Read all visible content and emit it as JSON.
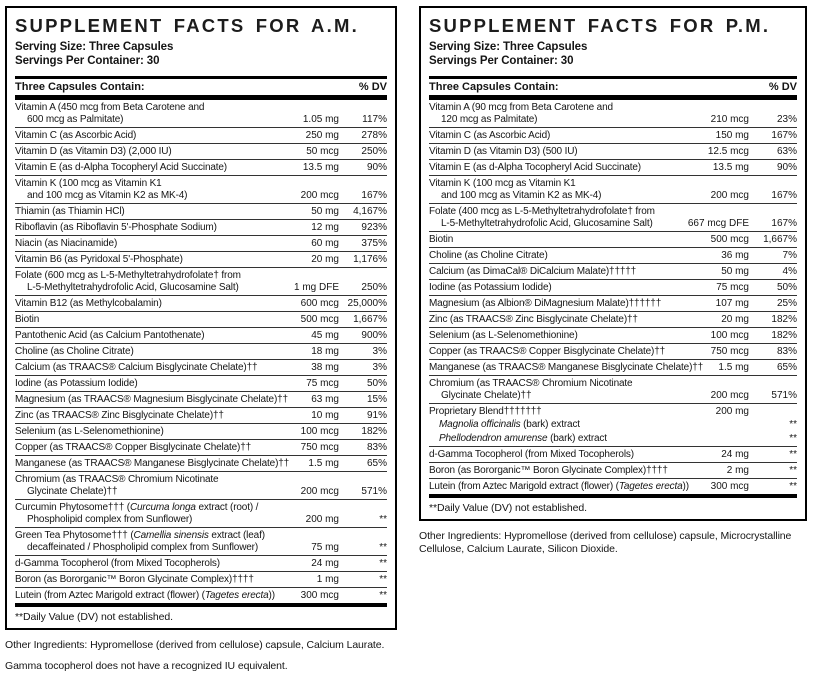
{
  "page": {
    "background": "#ffffff",
    "text_color": "#151515",
    "rule_color": "#000000"
  },
  "panels": [
    {
      "id": "am",
      "title": "SUPPLEMENT FACTS FOR A.M.",
      "serving_size": "Serving Size: Three Capsules",
      "servings_per_container": "Servings Per Container: 30",
      "head_left": "Three Capsules Contain:",
      "head_right": "% DV",
      "rows": [
        {
          "lines": [
            [
              "Vitamin A (450 mcg from Beta Carotene and"
            ],
            [
              "600 mcg as Palmitate)"
            ]
          ],
          "amount": "1.05 mg",
          "dv": "117%"
        },
        {
          "lines": [
            [
              "Vitamin C (as Ascorbic Acid)"
            ]
          ],
          "amount": "250 mg",
          "dv": "278%"
        },
        {
          "lines": [
            [
              "Vitamin D (as Vitamin D3) (2,000 IU)"
            ]
          ],
          "amount": "50 mcg",
          "dv": "250%"
        },
        {
          "lines": [
            [
              "Vitamin E (as d-Alpha Tocopheryl Acid Succinate)"
            ]
          ],
          "amount": "13.5 mg",
          "dv": "90%"
        },
        {
          "lines": [
            [
              "Vitamin K (100 mcg as Vitamin K1"
            ],
            [
              "and 100 mcg as Vitamin K2 as MK-4)"
            ]
          ],
          "amount": "200 mcg",
          "dv": "167%"
        },
        {
          "lines": [
            [
              "Thiamin (as Thiamin HCl)"
            ]
          ],
          "amount": "50 mg",
          "dv": "4,167%"
        },
        {
          "lines": [
            [
              "Riboflavin (as Riboflavin 5'-Phosphate Sodium)"
            ]
          ],
          "amount": "12 mg",
          "dv": "923%"
        },
        {
          "lines": [
            [
              "Niacin (as Niacinamide)"
            ]
          ],
          "amount": "60 mg",
          "dv": "375%"
        },
        {
          "lines": [
            [
              "Vitamin B6 (as Pyridoxal 5'-Phosphate)"
            ]
          ],
          "amount": "20 mg",
          "dv": "1,176%"
        },
        {
          "lines": [
            [
              "Folate (600 mcg as L-5-Methyltetrahydrofolate† from"
            ],
            [
              "L-5-Methyltetrahydrofolic Acid, Glucosamine Salt)"
            ]
          ],
          "amount": "1 mg DFE",
          "dv": "250%"
        },
        {
          "lines": [
            [
              "Vitamin B12 (as Methylcobalamin)"
            ]
          ],
          "amount": "600 mcg",
          "dv": "25,000%"
        },
        {
          "lines": [
            [
              "Biotin"
            ]
          ],
          "amount": "500 mcg",
          "dv": "1,667%"
        },
        {
          "lines": [
            [
              "Pantothenic Acid (as Calcium Pantothenate)"
            ]
          ],
          "amount": "45 mg",
          "dv": "900%"
        },
        {
          "lines": [
            [
              "Choline (as Choline Citrate)"
            ]
          ],
          "amount": "18 mg",
          "dv": "3%"
        },
        {
          "lines": [
            [
              "Calcium (as TRAACS® Calcium Bisglycinate Chelate)††"
            ]
          ],
          "amount": "38 mg",
          "dv": "3%"
        },
        {
          "lines": [
            [
              "Iodine (as Potassium Iodide)"
            ]
          ],
          "amount": "75 mcg",
          "dv": "50%"
        },
        {
          "lines": [
            [
              "Magnesium (as TRAACS® Magnesium Bisglycinate Chelate)††"
            ]
          ],
          "amount": "63 mg",
          "dv": "15%"
        },
        {
          "lines": [
            [
              "Zinc (as TRAACS® Zinc Bisglycinate Chelate)††"
            ]
          ],
          "amount": "10 mg",
          "dv": "91%"
        },
        {
          "lines": [
            [
              "Selenium (as L-Selenomethionine)"
            ]
          ],
          "amount": "100 mcg",
          "dv": "182%"
        },
        {
          "lines": [
            [
              "Copper (as TRAACS® Copper Bisglycinate Chelate)††"
            ]
          ],
          "amount": "750 mcg",
          "dv": "83%"
        },
        {
          "lines": [
            [
              "Manganese (as TRAACS® Manganese Bisglycinate Chelate)††"
            ]
          ],
          "amount": "1.5 mg",
          "dv": "65%"
        },
        {
          "lines": [
            [
              "Chromium (as TRAACS® Chromium Nicotinate"
            ],
            [
              "Glycinate Chelate)††"
            ]
          ],
          "amount": "200 mcg",
          "dv": "571%"
        },
        {
          "lines": [
            [
              "Curcumin Phytosome††† (",
              {
                "i": "Curcuma longa"
              },
              " extract (root) /"
            ],
            [
              "Phospholipid complex from Sunflower)"
            ]
          ],
          "amount": "200 mg",
          "dv": "**"
        },
        {
          "lines": [
            [
              "Green Tea Phytosome††† (",
              {
                "i": "Camellia sinensis"
              },
              " extract (leaf)"
            ],
            [
              "decaffeinated / Phospholipid complex from Sunflower)"
            ]
          ],
          "amount": "75 mg",
          "dv": "**"
        },
        {
          "lines": [
            [
              "d-Gamma Tocopherol (from Mixed Tocopherols)"
            ]
          ],
          "amount": "24 mg",
          "dv": "**"
        },
        {
          "lines": [
            [
              "Boron (as Bororganic™ Boron Glycinate Complex)††††"
            ]
          ],
          "amount": "1 mg",
          "dv": "**"
        },
        {
          "lines": [
            [
              "Lutein (from Aztec Marigold extract (flower) (",
              {
                "i": "Tagetes erecta"
              },
              "))"
            ]
          ],
          "amount": "300 mcg",
          "dv": "**"
        }
      ],
      "footnote": "**Daily Value (DV) not established.",
      "below": [
        "Other Ingredients: Hypromellose (derived from cellulose) capsule, Calcium Laurate.",
        "Gamma tocopherol does not have a recognized IU equivalent."
      ]
    },
    {
      "id": "pm",
      "title": "SUPPLEMENT FACTS FOR P.M.",
      "serving_size": "Serving Size: Three Capsules",
      "servings_per_container": "Servings Per Container: 30",
      "head_left": "Three Capsules Contain:",
      "head_right": "% DV",
      "rows": [
        {
          "lines": [
            [
              "Vitamin A (90 mcg from Beta Carotene and"
            ],
            [
              "120 mcg as Palmitate)"
            ]
          ],
          "amount": "210 mcg",
          "dv": "23%"
        },
        {
          "lines": [
            [
              "Vitamin C (as Ascorbic Acid)"
            ]
          ],
          "amount": "150 mg",
          "dv": "167%"
        },
        {
          "lines": [
            [
              "Vitamin D (as Vitamin D3) (500 IU)"
            ]
          ],
          "amount": "12.5 mcg",
          "dv": "63%"
        },
        {
          "lines": [
            [
              "Vitamin E (as d-Alpha Tocopheryl Acid Succinate)"
            ]
          ],
          "amount": "13.5 mg",
          "dv": "90%"
        },
        {
          "lines": [
            [
              "Vitamin K (100 mcg as Vitamin K1"
            ],
            [
              "and 100 mcg as Vitamin K2 as MK-4)"
            ]
          ],
          "amount": "200 mcg",
          "dv": "167%"
        },
        {
          "lines": [
            [
              "Folate (400 mcg as L-5-Methyltetrahydrofolate† from"
            ],
            [
              "L-5-Methyltetrahydrofolic Acid, Glucosamine Salt)"
            ]
          ],
          "amount": "667 mcg DFE",
          "dv": "167%"
        },
        {
          "lines": [
            [
              "Biotin"
            ]
          ],
          "amount": "500 mcg",
          "dv": "1,667%"
        },
        {
          "lines": [
            [
              "Choline (as Choline Citrate)"
            ]
          ],
          "amount": "36 mg",
          "dv": "7%"
        },
        {
          "lines": [
            [
              "Calcium (as DimaCal® DiCalcium Malate)†††††"
            ]
          ],
          "amount": "50 mg",
          "dv": "4%"
        },
        {
          "lines": [
            [
              "Iodine (as Potassium Iodide)"
            ]
          ],
          "amount": "75 mcg",
          "dv": "50%"
        },
        {
          "lines": [
            [
              "Magnesium (as Albion® DiMagnesium Malate)††††††"
            ]
          ],
          "amount": "107 mg",
          "dv": "25%"
        },
        {
          "lines": [
            [
              "Zinc (as TRAACS® Zinc Bisglycinate Chelate)††"
            ]
          ],
          "amount": "20 mg",
          "dv": "182%"
        },
        {
          "lines": [
            [
              "Selenium (as L-Selenomethionine)"
            ]
          ],
          "amount": "100 mcg",
          "dv": "182%"
        },
        {
          "lines": [
            [
              "Copper (as TRAACS® Copper Bisglycinate Chelate)††"
            ]
          ],
          "amount": "750 mcg",
          "dv": "83%"
        },
        {
          "lines": [
            [
              "Manganese (as TRAACS® Manganese Bisglycinate Chelate)††"
            ]
          ],
          "amount": "1.5 mg",
          "dv": "65%"
        },
        {
          "lines": [
            [
              "Chromium (as TRAACS® Chromium Nicotinate"
            ],
            [
              "Glycinate Chelate)††"
            ]
          ],
          "amount": "200 mcg",
          "dv": "571%"
        },
        {
          "lines": [
            [
              "Proprietary Blend†††††††"
            ]
          ],
          "amount": "200 mg",
          "dv": "",
          "children": [
            {
              "lines": [
                [
                  {
                    "i": "Magnolia officinalis"
                  },
                  " (bark) extract"
                ]
              ],
              "amount": "",
              "dv": "**"
            },
            {
              "lines": [
                [
                  {
                    "i": "Phellodendron amurense"
                  },
                  " (bark) extract"
                ]
              ],
              "amount": "",
              "dv": "**"
            }
          ]
        },
        {
          "lines": [
            [
              "d-Gamma Tocopherol (from Mixed Tocopherols)"
            ]
          ],
          "amount": "24 mg",
          "dv": "**"
        },
        {
          "lines": [
            [
              "Boron (as Bororganic™ Boron Glycinate Complex)††††"
            ]
          ],
          "amount": "2 mg",
          "dv": "**"
        },
        {
          "lines": [
            [
              "Lutein (from Aztec Marigold extract (flower) (",
              {
                "i": "Tagetes erecta"
              },
              "))"
            ]
          ],
          "amount": "300 mcg",
          "dv": "**"
        }
      ],
      "footnote": "**Daily Value (DV) not established.",
      "below": [
        "Other Ingredients: Hypromellose (derived from cellulose) capsule, Microcrystalline Cellulose, Calcium Laurate, Silicon Dioxide."
      ]
    }
  ]
}
